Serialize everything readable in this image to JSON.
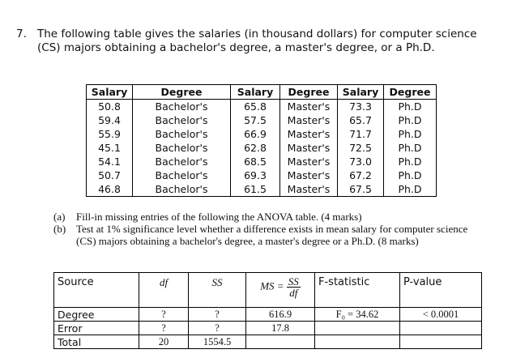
{
  "question": {
    "number": "7.",
    "text": "The following table gives the salaries (in thousand dollars) for computer science (CS) majors obtaining a bachelor's degree, a master's degree, or a Ph.D."
  },
  "salary_table": {
    "headers": [
      "Salary",
      "Degree",
      "Salary",
      "Degree",
      "Salary",
      "Degree"
    ],
    "groups": [
      {
        "salaries": [
          "50.8",
          "59.4",
          "55.9",
          "45.1",
          "54.1",
          "50.7",
          "46.8"
        ],
        "degrees": [
          "Bachelor's",
          "Bachelor's",
          "Bachelor's",
          "Bachelor's",
          "Bachelor's",
          "Bachelor's",
          "Bachelor's"
        ]
      },
      {
        "salaries": [
          "65.8",
          "57.5",
          "66.9",
          "62.8",
          "68.5",
          "69.3",
          "61.5"
        ],
        "degrees": [
          "Master's",
          "Master's",
          "Master's",
          "Master's",
          "Master's",
          "Master's",
          "Master's"
        ]
      },
      {
        "salaries": [
          "73.3",
          "65.7",
          "71.7",
          "72.5",
          "73.0",
          "67.2",
          "67.5"
        ],
        "degrees": [
          "Ph.D",
          "Ph.D",
          "Ph.D",
          "Ph.D",
          "Ph.D",
          "Ph.D",
          "Ph.D"
        ]
      }
    ]
  },
  "parts": [
    {
      "label": "(a)",
      "text": "Fill-in missing entries of the following the ANOVA table. (4 marks)"
    },
    {
      "label": "(b)",
      "text": "Test at 1% significance level whether a difference exists in mean salary for computer science (CS) majors obtaining a bachelor's degree, a master's degree or a Ph.D. (8 marks)"
    }
  ],
  "anova": {
    "headers": {
      "source": "Source",
      "df": "df",
      "ss": "SS",
      "ms_prefix": "MS =",
      "ms_num": "SS",
      "ms_den": "df",
      "f": "F-statistic",
      "p": "P-value"
    },
    "rows": [
      {
        "source": "Degree",
        "df": "?",
        "ss": "?",
        "ms": "616.9",
        "f": "F₀ = 34.62",
        "p": "< 0.0001"
      },
      {
        "source": "Error",
        "df": "?",
        "ss": "?",
        "ms": "17.8",
        "f": "",
        "p": ""
      },
      {
        "source": "Total",
        "df": "20",
        "ss": "1554.5",
        "ms": "",
        "f": "",
        "p": ""
      }
    ]
  }
}
